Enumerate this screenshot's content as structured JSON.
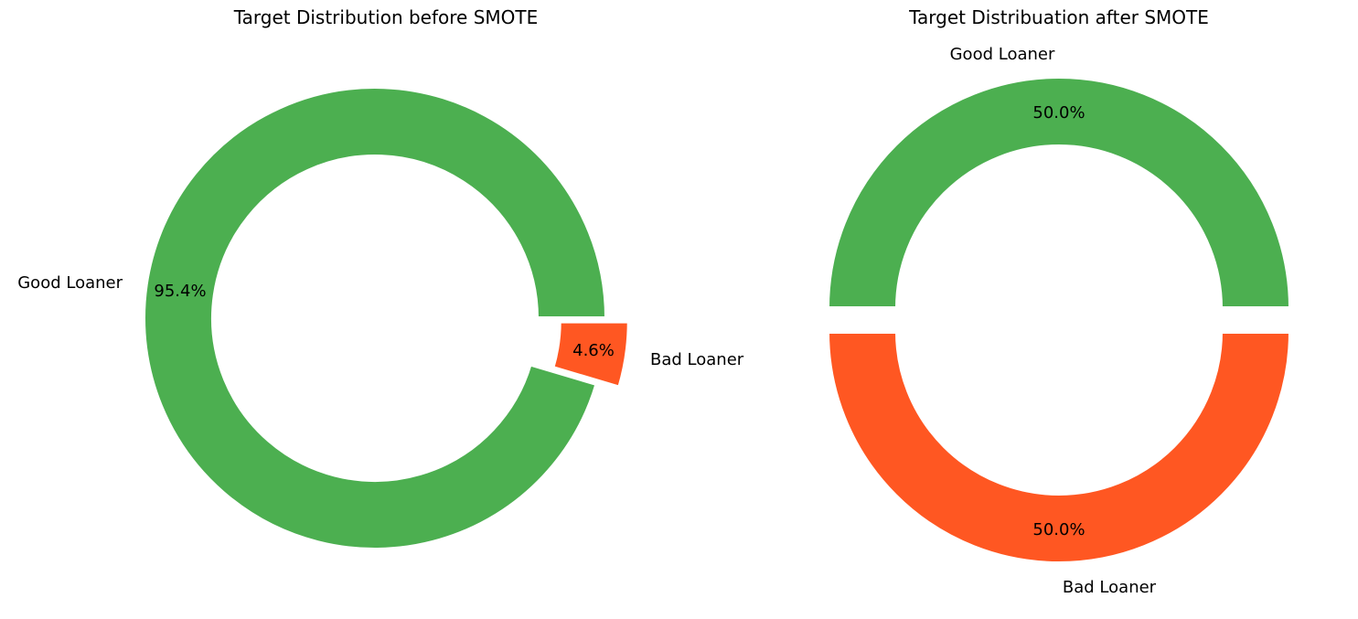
{
  "chart_data": [
    {
      "type": "pie",
      "style": "donut",
      "title": "Target Distribution before SMOTE",
      "slices": [
        {
          "label": "Good Loaner",
          "value": 95.4,
          "pct_text": "95.4%",
          "color": "#4caf50",
          "exploded": false
        },
        {
          "label": "Bad Loaner",
          "value": 4.6,
          "pct_text": "4.6%",
          "color": "#ff5722",
          "exploded": true
        }
      ]
    },
    {
      "type": "pie",
      "style": "donut",
      "title": "Target Distribuation after SMOTE",
      "slices": [
        {
          "label": "Good Loaner",
          "value": 50.0,
          "pct_text": "50.0%",
          "color": "#4caf50",
          "exploded": true
        },
        {
          "label": "Bad Loaner",
          "value": 50.0,
          "pct_text": "50.0%",
          "color": "#ff5722",
          "exploded": true
        }
      ]
    }
  ]
}
